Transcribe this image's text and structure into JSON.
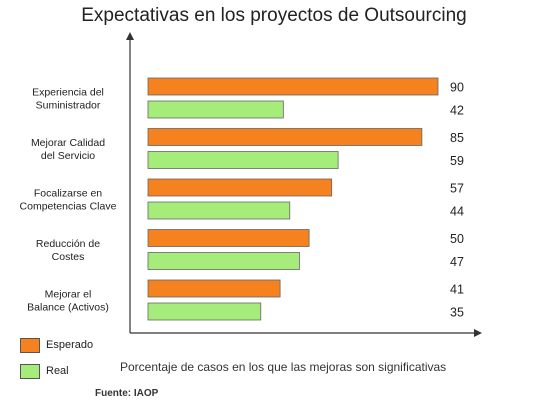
{
  "chart_data": {
    "type": "bar",
    "orientation": "horizontal",
    "title": "Expectativas en los proyectos de Outsourcing",
    "xlabel": "Porcentaje de casos en los que las mejoras son significativas",
    "ylabel": "",
    "xlim": [
      0,
      100
    ],
    "categories": [
      [
        "Experiencia del",
        "Suministrador"
      ],
      [
        "Mejorar Calidad",
        "del Servicio"
      ],
      [
        "Focalizarse en",
        "Competencias Clave"
      ],
      [
        "Reducción de",
        "Costes"
      ],
      [
        "Mejorar el",
        "Balance (Activos)"
      ]
    ],
    "series": [
      {
        "name": "Esperado",
        "color": "#f5821f",
        "values": [
          90,
          85,
          57,
          50,
          41
        ]
      },
      {
        "name": "Real",
        "color": "#a6ec7a",
        "values": [
          42,
          59,
          44,
          47,
          35
        ]
      }
    ],
    "legend_placement": "bottom-left",
    "grid": false,
    "source": "Fuente: IAOP"
  }
}
